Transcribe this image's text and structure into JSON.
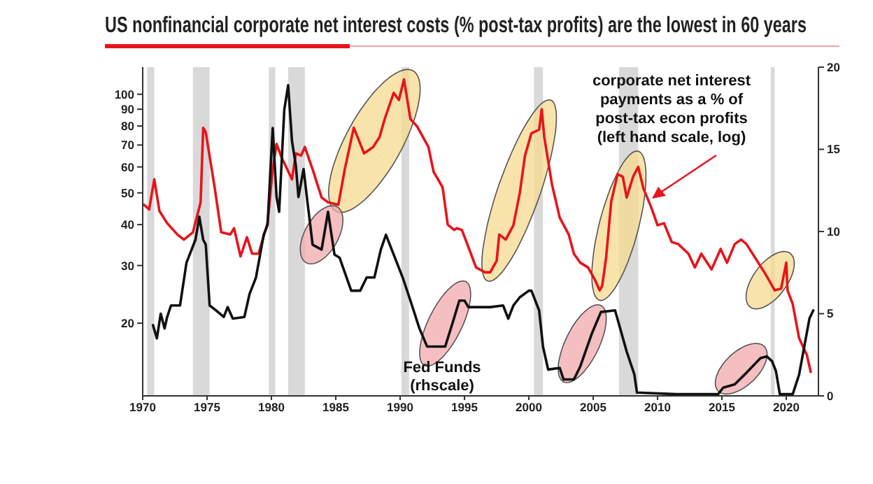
{
  "chart_data": {
    "type": "line",
    "title": "US nonfinancial corporate net interest costs (% post-tax profits) are the lowest in 60 years",
    "log": "y",
    "grid": false,
    "legend": false,
    "xlim": [
      1970,
      2022.5
    ],
    "xticks": [
      1970,
      1975,
      1980,
      1985,
      1990,
      1995,
      2000,
      2005,
      2010,
      2015,
      2020
    ],
    "ylim": [
      12,
      121
    ],
    "yticks": [
      20,
      30,
      40,
      50,
      60,
      70,
      80,
      90,
      100
    ],
    "y2lim": [
      0,
      20
    ],
    "y2ticks": [
      0,
      5,
      10,
      15,
      20
    ],
    "bands": [
      {
        "axis": "x",
        "from": 1970.35,
        "to": 1970.9,
        "color": "#d9d9d9"
      },
      {
        "axis": "x",
        "from": 1973.9,
        "to": 1975.2,
        "color": "#d9d9d9"
      },
      {
        "axis": "x",
        "from": 1979.8,
        "to": 1980.3,
        "color": "#d9d9d9"
      },
      {
        "axis": "x",
        "from": 1981.3,
        "to": 1982.6,
        "color": "#d9d9d9"
      },
      {
        "axis": "x",
        "from": 1990.1,
        "to": 1990.7,
        "color": "#d9d9d9"
      },
      {
        "axis": "x",
        "from": 2000.4,
        "to": 2001.1,
        "color": "#d9d9d9"
      },
      {
        "axis": "x",
        "from": 2007.0,
        "to": 2008.5,
        "color": "#d9d9d9"
      },
      {
        "axis": "x",
        "from": 2018.8,
        "to": 2019.1,
        "color": "#d9d9d9"
      }
    ],
    "series": [
      {
        "name": "corporate net interest payments as a % of post-tax econ profits (left hand scale, log)",
        "color": "#e8141b",
        "axis": "y",
        "x": [
          1970.1,
          1970.5,
          1970.9,
          1971.3,
          1971.9,
          1972.7,
          1973.2,
          1973.9,
          1974.5,
          1974.7,
          1974.9,
          1975.6,
          1976.1,
          1976.8,
          1977.1,
          1977.6,
          1978.1,
          1978.5,
          1979,
          1979.7,
          1980.1,
          1980.4,
          1980.8,
          1981.6,
          1981.9,
          1982.3,
          1982.6,
          1983.2,
          1983.9,
          1984.4,
          1985.2,
          1985.7,
          1986.4,
          1987.2,
          1987.9,
          1988.4,
          1988.8,
          1989.5,
          1989.9,
          1990.3,
          1990.8,
          1991.3,
          1992.2,
          1992.6,
          1993.3,
          1993.7,
          1994.2,
          1994.4,
          1994.8,
          1995.5,
          1995.9,
          1996.6,
          1997,
          1997.5,
          1997.7,
          1998.2,
          1998.8,
          1999.3,
          1999.7,
          2000.2,
          2000.8,
          2001,
          2001.2,
          2001.8,
          2002.4,
          2003.1,
          2003.5,
          2004,
          2004.6,
          2005.1,
          2005.5,
          2005.7,
          2006,
          2006.4,
          2006.9,
          2007.3,
          2007.6,
          2008.1,
          2008.5,
          2008.9,
          2009.5,
          2010,
          2010.5,
          2011.1,
          2011.6,
          2012.4,
          2012.9,
          2013.4,
          2014.2,
          2014.9,
          2015.4,
          2016,
          2016.5,
          2016.9,
          2017.6,
          2018.3,
          2018.7,
          2019.1,
          2019.6,
          2020,
          2020.1,
          2020.5,
          2021,
          2021.6,
          2021.9
        ],
        "values": [
          46,
          44.5,
          55,
          44,
          40.4,
          37.3,
          36,
          37.9,
          46.8,
          79,
          76.5,
          51.6,
          37.9,
          37.3,
          39,
          32,
          36.6,
          32.6,
          32.6,
          40.4,
          59,
          70.5,
          64,
          55,
          66,
          65,
          69,
          59,
          48.4,
          46.8,
          46,
          59,
          79,
          66,
          69,
          74,
          84,
          101,
          96,
          111,
          84,
          80,
          69,
          58,
          52,
          40,
          38.5,
          39,
          38.5,
          32.6,
          29.6,
          28.6,
          28.6,
          31,
          37.3,
          36,
          39.8,
          50,
          65,
          76,
          78,
          90,
          74,
          53,
          42,
          37.3,
          32.6,
          30.6,
          29.6,
          27.3,
          25.2,
          26,
          31.6,
          47,
          57,
          56,
          48.4,
          56,
          60,
          51.6,
          45.3,
          39.8,
          40.4,
          35.4,
          34.9,
          32.6,
          29.6,
          32.6,
          29.2,
          33.7,
          30.6,
          34.9,
          36,
          34.9,
          31.6,
          28.6,
          26.9,
          25.2,
          25.5,
          30.6,
          25.2,
          22.9,
          18,
          16,
          14.2
        ]
      },
      {
        "name": "Fed Funds (rhscale)",
        "color": "#111111",
        "axis": "y2",
        "x": [
          1970.8,
          1971.1,
          1971.4,
          1971.7,
          1971.9,
          1972.2,
          1972.9,
          1973.4,
          1974.1,
          1974.4,
          1974.7,
          1974.9,
          1975.2,
          1975.7,
          1976.3,
          1976.6,
          1977,
          1977.9,
          1978.3,
          1978.8,
          1979.4,
          1979.7,
          1980.1,
          1980.4,
          1980.6,
          1981,
          1981.3,
          1981.6,
          1981.9,
          1982.1,
          1982.5,
          1982.8,
          1983.2,
          1983.9,
          1984.4,
          1984.9,
          1985.3,
          1986.2,
          1986.9,
          1987.4,
          1988,
          1988.5,
          1988.9,
          1989.2,
          1990.2,
          1990.8,
          1991.5,
          1992.1,
          1993.5,
          1994.1,
          1994.6,
          1995,
          1995.3,
          1997,
          1998,
          1998.4,
          1998.8,
          1999.3,
          2000,
          2000.2,
          2000.8,
          2001.1,
          2001.5,
          2002.4,
          2002.7,
          2003.5,
          2004,
          2004.9,
          2005.6,
          2006.7,
          2007.1,
          2007.6,
          2008.2,
          2008.4,
          2011.5,
          2014.7,
          2015.1,
          2016,
          2016.9,
          2018,
          2018.5,
          2018.9,
          2019.2,
          2019.5,
          2020.5,
          2021,
          2021.4,
          2021.8,
          2022.1
        ],
        "values": [
          4.3,
          3.5,
          5,
          4.1,
          4.8,
          5.5,
          5.5,
          8.1,
          9.5,
          10.9,
          9.5,
          9.2,
          5.5,
          5.2,
          4.8,
          5.4,
          4.7,
          4.8,
          6.2,
          7.2,
          9.8,
          10.4,
          16.3,
          12.1,
          11.2,
          17.4,
          18.9,
          15.5,
          14,
          12.1,
          13.8,
          11.8,
          9.2,
          8.9,
          11.2,
          8.6,
          8.4,
          6.4,
          6.4,
          7.2,
          7.2,
          8.9,
          9.8,
          9.2,
          7.2,
          5.8,
          4.1,
          3,
          3,
          4.5,
          5.8,
          5.8,
          5.4,
          5.4,
          5.5,
          4.7,
          5.5,
          6,
          6.4,
          6.4,
          5.2,
          3,
          1.6,
          1.7,
          1,
          1,
          1.8,
          3.8,
          5.1,
          5.2,
          4.1,
          2.7,
          1.3,
          0.2,
          0.1,
          0.1,
          0.5,
          0.7,
          1.4,
          2.3,
          2.4,
          2.1,
          1.5,
          0.1,
          0.1,
          1.3,
          3,
          4.7,
          5.2
        ]
      }
    ]
  }
}
